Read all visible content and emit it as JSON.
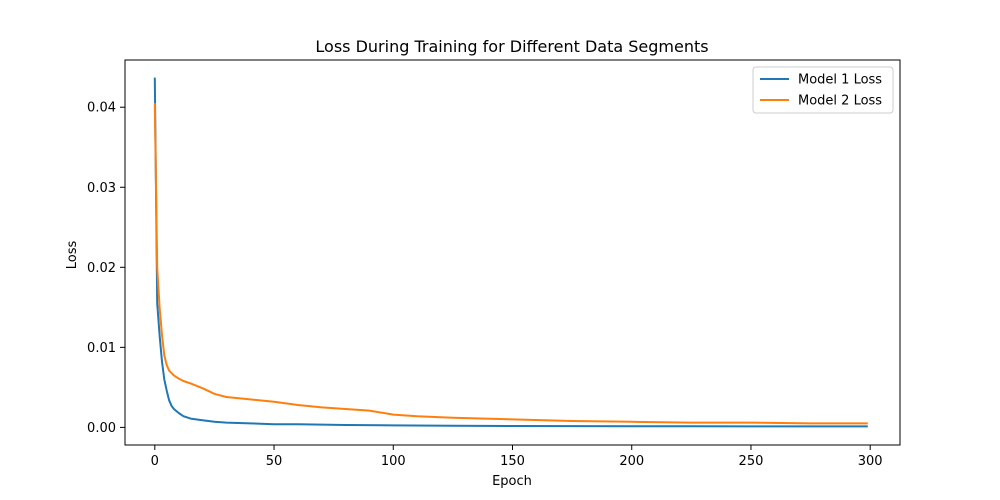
{
  "chart_data": {
    "type": "line",
    "title": "Loss During Training for Different Data Segments",
    "xlabel": "Epoch",
    "ylabel": "Loss",
    "xlim": [
      -12.5,
      312.5
    ],
    "ylim": [
      -0.0022,
      0.0459
    ],
    "xticks": [
      0,
      50,
      100,
      150,
      200,
      250,
      300
    ],
    "yticks": [
      0.0,
      0.01,
      0.02,
      0.03,
      0.04
    ],
    "ytick_labels": [
      "0.00",
      "0.01",
      "0.02",
      "0.03",
      "0.04"
    ],
    "grid": false,
    "legend_position": "top-right",
    "series": [
      {
        "name": "Model 1 Loss",
        "color": "#1f77b4",
        "x": [
          0,
          1,
          2,
          3,
          4,
          5,
          6,
          7,
          8,
          10,
          12,
          15,
          20,
          25,
          30,
          40,
          50,
          60,
          80,
          100,
          125,
          150,
          175,
          200,
          225,
          250,
          275,
          299
        ],
        "y": [
          0.0437,
          0.0155,
          0.0115,
          0.0082,
          0.006,
          0.0046,
          0.0034,
          0.0027,
          0.0023,
          0.0018,
          0.0014,
          0.0011,
          0.0009,
          0.0007,
          0.0006,
          0.0005,
          0.0004,
          0.0004,
          0.0003,
          0.00025,
          0.0002,
          0.00018,
          0.00016,
          0.00015,
          0.00014,
          0.00013,
          0.00012,
          0.00012
        ]
      },
      {
        "name": "Model 2 Loss",
        "color": "#ff7f0e",
        "x": [
          0,
          1,
          2,
          3,
          4,
          5,
          6,
          8,
          10,
          12,
          15,
          20,
          25,
          30,
          40,
          50,
          60,
          70,
          80,
          90,
          100,
          110,
          125,
          150,
          175,
          200,
          225,
          250,
          275,
          299
        ],
        "y": [
          0.0405,
          0.02,
          0.015,
          0.0115,
          0.009,
          0.0078,
          0.0071,
          0.0065,
          0.0061,
          0.0058,
          0.0055,
          0.0049,
          0.0042,
          0.0038,
          0.0035,
          0.0032,
          0.0028,
          0.0025,
          0.0023,
          0.0021,
          0.0016,
          0.0014,
          0.0012,
          0.001,
          0.0008,
          0.0007,
          0.0006,
          0.0006,
          0.0005,
          0.0005
        ]
      }
    ]
  }
}
